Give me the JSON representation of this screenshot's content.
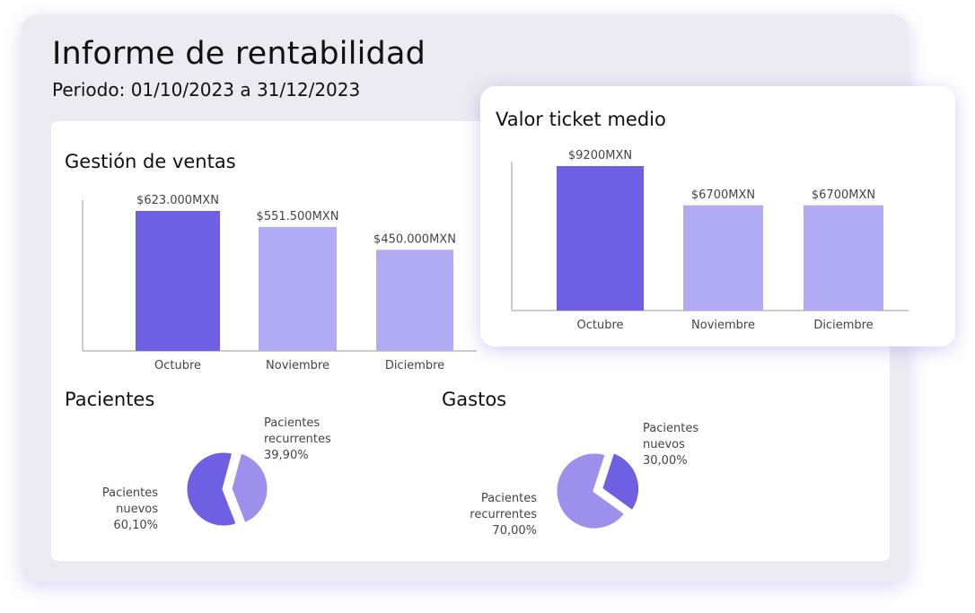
{
  "report": {
    "title": "Informe de rentabilidad",
    "period": "Periodo: 01/10/2023 a 31/12/2023"
  },
  "colors": {
    "primary": "#6f5fe2",
    "secondary": "#b1abf4",
    "pie_light": "#9c90ec",
    "axis": "#bbbbbb",
    "label": "#444444"
  },
  "chart_data": [
    {
      "id": "ventas",
      "type": "bar",
      "title": "Gestión de ventas",
      "categories": [
        "Octubre",
        "Noviembre",
        "Diciembre"
      ],
      "values": [
        623000,
        551500,
        450000
      ],
      "value_labels": [
        "$623.000MXN",
        "$551.500MXN",
        "$450.000MXN"
      ],
      "ylim": [
        0,
        623000
      ],
      "highlight_index": 0,
      "grid": false
    },
    {
      "id": "ticket",
      "type": "bar",
      "title": "Valor ticket medio",
      "categories": [
        "Octubre",
        "Noviembre",
        "Diciembre"
      ],
      "values": [
        9200,
        6700,
        6700
      ],
      "value_labels": [
        "$9200MXN",
        "$6700MXN",
        "$6700MXN"
      ],
      "ylim": [
        0,
        9200
      ],
      "highlight_index": 0,
      "grid": false
    },
    {
      "id": "pacientes",
      "type": "pie",
      "title": "Pacientes",
      "slices": [
        {
          "label_lines": [
            "Pacientes",
            "recurrentes"
          ],
          "pct_label": "39,90%",
          "value": 39.9,
          "exploded": true
        },
        {
          "label_lines": [
            "Pacientes",
            "nuevos"
          ],
          "pct_label": "60,10%",
          "value": 60.1,
          "exploded": false
        }
      ]
    },
    {
      "id": "gastos",
      "type": "pie",
      "title": "Gastos",
      "slices": [
        {
          "label_lines": [
            "Pacientes",
            "nuevos"
          ],
          "pct_label": "30,00%",
          "value": 30.0,
          "exploded": true
        },
        {
          "label_lines": [
            "Pacientes",
            "recurrentes"
          ],
          "pct_label": "70,00%",
          "value": 70.0,
          "exploded": false
        }
      ]
    }
  ]
}
